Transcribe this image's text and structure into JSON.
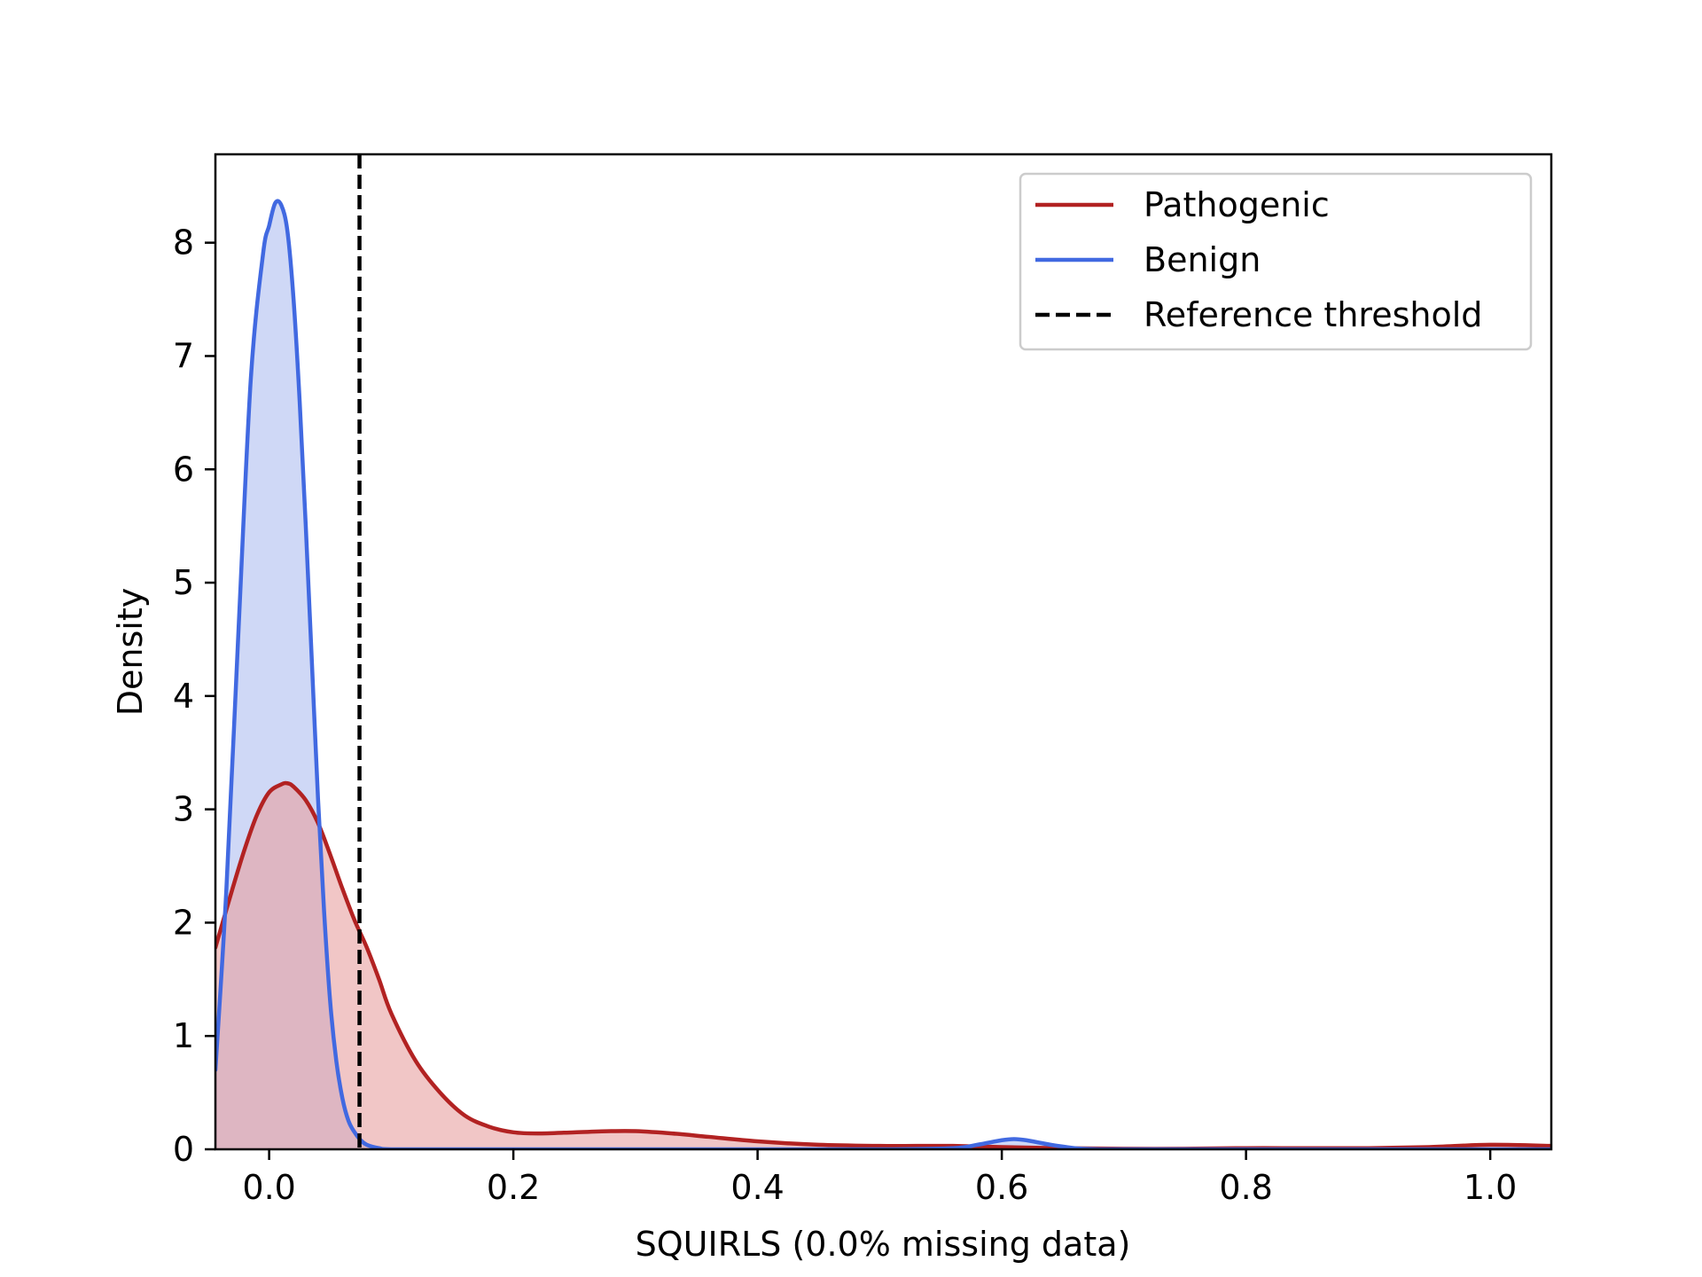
{
  "chart_data": {
    "type": "area",
    "xlabel": "SQUIRLS (0.0% missing data)",
    "ylabel": "Density",
    "xlim": [
      -0.044,
      1.05
    ],
    "ylim": [
      0,
      8.78
    ],
    "xticks": [
      0.0,
      0.2,
      0.4,
      0.6,
      0.8,
      1.0
    ],
    "xtick_labels": [
      "0.0",
      "0.2",
      "0.4",
      "0.6",
      "0.8",
      "1.0"
    ],
    "yticks": [
      0,
      1,
      2,
      3,
      4,
      5,
      6,
      7,
      8
    ],
    "ytick_labels": [
      "0",
      "1",
      "2",
      "3",
      "4",
      "5",
      "6",
      "7",
      "8"
    ],
    "grid": false,
    "legend_position": "top-right",
    "legend": [
      {
        "label": "Pathogenic",
        "style": "solid",
        "color": "#b22222"
      },
      {
        "label": "Benign",
        "style": "solid",
        "color": "#4169e1"
      },
      {
        "label": "Reference threshold",
        "style": "dashed",
        "color": "#000000"
      }
    ],
    "series": [
      {
        "name": "Pathogenic",
        "color": "#b22222",
        "fill": "#e8a0a0",
        "fill_opacity": 0.6,
        "x": [
          -0.044,
          -0.03,
          -0.02,
          -0.01,
          0.0,
          0.01,
          0.015,
          0.02,
          0.03,
          0.04,
          0.05,
          0.06,
          0.07,
          0.08,
          0.09,
          0.1,
          0.12,
          0.14,
          0.16,
          0.18,
          0.2,
          0.22,
          0.25,
          0.28,
          0.3,
          0.33,
          0.36,
          0.4,
          0.45,
          0.5,
          0.53,
          0.56,
          0.6,
          0.65,
          0.7,
          0.75,
          0.8,
          0.85,
          0.9,
          0.95,
          1.0,
          1.05
        ],
        "y": [
          1.78,
          2.3,
          2.65,
          2.95,
          3.15,
          3.22,
          3.23,
          3.2,
          3.08,
          2.88,
          2.6,
          2.3,
          2.02,
          1.78,
          1.5,
          1.2,
          0.78,
          0.5,
          0.3,
          0.2,
          0.15,
          0.14,
          0.15,
          0.16,
          0.16,
          0.14,
          0.11,
          0.07,
          0.04,
          0.03,
          0.03,
          0.03,
          0.02,
          0.01,
          0.005,
          0.005,
          0.01,
          0.01,
          0.01,
          0.02,
          0.04,
          0.03
        ]
      },
      {
        "name": "Benign",
        "color": "#4169e1",
        "fill": "#a8b8ef",
        "fill_opacity": 0.55,
        "x": [
          -0.044,
          -0.035,
          -0.025,
          -0.015,
          -0.005,
          0.0,
          0.005,
          0.01,
          0.015,
          0.02,
          0.025,
          0.03,
          0.035,
          0.04,
          0.045,
          0.05,
          0.055,
          0.06,
          0.065,
          0.07,
          0.075,
          0.08,
          0.09,
          0.1,
          0.15,
          0.2,
          0.3,
          0.4,
          0.5,
          0.56,
          0.58,
          0.6,
          0.61,
          0.62,
          0.64,
          0.66,
          0.68,
          0.7,
          0.8,
          0.9,
          1.0,
          1.05
        ],
        "y": [
          0.7,
          2.3,
          4.6,
          6.8,
          7.9,
          8.15,
          8.35,
          8.33,
          8.1,
          7.5,
          6.6,
          5.5,
          4.3,
          3.1,
          2.1,
          1.3,
          0.78,
          0.45,
          0.25,
          0.15,
          0.08,
          0.04,
          0.01,
          0.0,
          0.0,
          0.0,
          0.0,
          0.0,
          0.0,
          0.01,
          0.04,
          0.08,
          0.09,
          0.08,
          0.04,
          0.01,
          0.0,
          0.0,
          0.0,
          0.0,
          0.0,
          0.0
        ]
      }
    ],
    "reference_threshold": {
      "name": "Reference threshold",
      "x": 0.074,
      "style": "dashed",
      "color": "#000000"
    }
  }
}
